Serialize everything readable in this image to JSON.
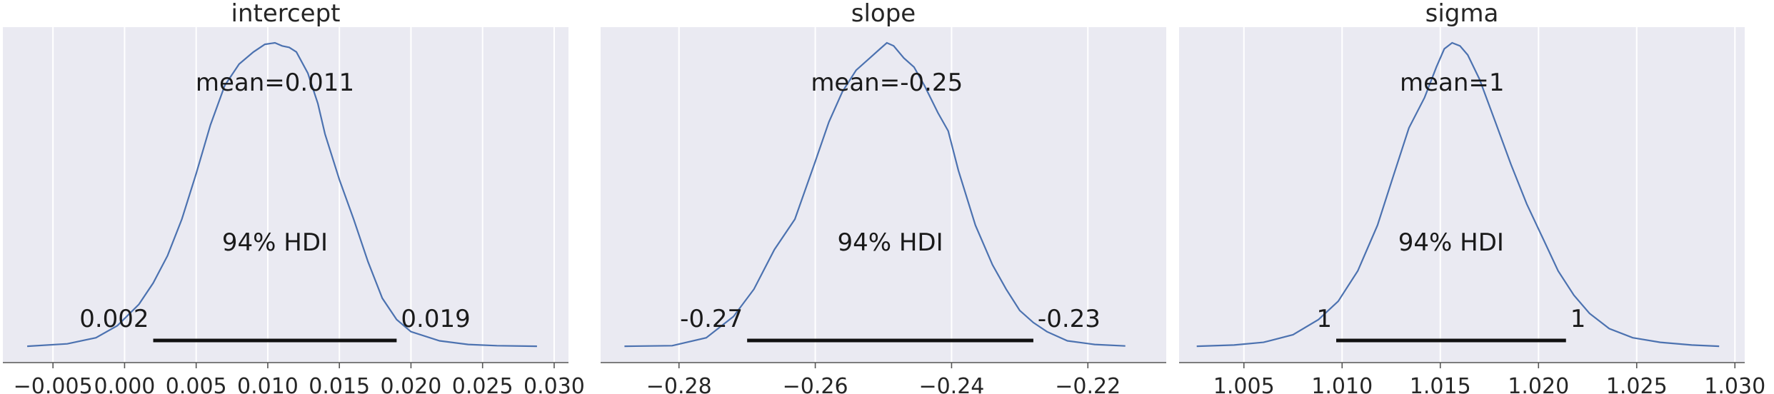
{
  "chart_data": [
    {
      "type": "line",
      "title": "intercept",
      "xlim": [
        -0.0085,
        0.031
      ],
      "x_ticks": [
        -0.005,
        0.0,
        0.005,
        0.01,
        0.015,
        0.02,
        0.025,
        0.03
      ],
      "x_tick_labels": [
        "−0.005",
        "0.000",
        "0.005",
        "0.010",
        "0.015",
        "0.020",
        "0.025",
        "0.030"
      ],
      "grid": true,
      "mean_label": "mean=0.011",
      "hdi_label": "94% HDI",
      "hdi": [
        0.002,
        0.019
      ],
      "hdi_low_label": "0.002",
      "hdi_high_label": "0.019",
      "density": {
        "x": [
          -0.0068,
          -0.004,
          -0.002,
          -0.0005,
          0.001,
          0.002,
          0.003,
          0.004,
          0.005,
          0.006,
          0.007,
          0.008,
          0.009,
          0.0098,
          0.0105,
          0.011,
          0.0115,
          0.012,
          0.0128,
          0.0135,
          0.014,
          0.015,
          0.016,
          0.017,
          0.018,
          0.019,
          0.02,
          0.022,
          0.024,
          0.026,
          0.0288
        ],
        "y": [
          0.002,
          0.01,
          0.03,
          0.07,
          0.14,
          0.21,
          0.3,
          0.42,
          0.57,
          0.73,
          0.86,
          0.93,
          0.97,
          0.995,
          1.0,
          0.99,
          0.985,
          0.97,
          0.9,
          0.8,
          0.7,
          0.55,
          0.42,
          0.28,
          0.16,
          0.09,
          0.05,
          0.02,
          0.008,
          0.004,
          0.002
        ]
      }
    },
    {
      "type": "line",
      "title": "slope",
      "xlim": [
        -0.2915,
        -0.2085
      ],
      "x_ticks": [
        -0.28,
        -0.26,
        -0.24,
        -0.22
      ],
      "x_tick_labels": [
        "−0.28",
        "−0.26",
        "−0.24",
        "−0.22"
      ],
      "grid": true,
      "mean_label": "mean=-0.25",
      "hdi_label": "94% HDI",
      "hdi": [
        -0.27,
        -0.228
      ],
      "hdi_low_label": "-0.27",
      "hdi_high_label": "-0.23",
      "density": {
        "x": [
          -0.288,
          -0.281,
          -0.276,
          -0.272,
          -0.269,
          -0.266,
          -0.263,
          -0.26,
          -0.258,
          -0.256,
          -0.254,
          -0.252,
          -0.2505,
          -0.2495,
          -0.2485,
          -0.247,
          -0.2455,
          -0.244,
          -0.242,
          -0.2405,
          -0.239,
          -0.2365,
          -0.234,
          -0.232,
          -0.23,
          -0.228,
          -0.226,
          -0.223,
          -0.219,
          -0.2145
        ],
        "y": [
          0.002,
          0.004,
          0.03,
          0.1,
          0.19,
          0.32,
          0.42,
          0.61,
          0.74,
          0.84,
          0.91,
          0.95,
          0.98,
          1.0,
          0.99,
          0.95,
          0.92,
          0.86,
          0.77,
          0.71,
          0.58,
          0.4,
          0.27,
          0.19,
          0.12,
          0.08,
          0.05,
          0.02,
          0.008,
          0.003
        ]
      }
    },
    {
      "type": "line",
      "title": "sigma",
      "xlim": [
        1.0017,
        1.0305
      ],
      "x_ticks": [
        1.005,
        1.01,
        1.015,
        1.02,
        1.025,
        1.03
      ],
      "x_tick_labels": [
        "1.005",
        "1.010",
        "1.015",
        "1.020",
        "1.025",
        "1.030"
      ],
      "grid": true,
      "mean_label": "mean=1",
      "hdi_label": "94% HDI",
      "hdi": [
        1.0097,
        1.0214
      ],
      "hdi_low_label": "1",
      "hdi_high_label": "1",
      "density": {
        "x": [
          1.0026,
          1.0045,
          1.006,
          1.0075,
          1.0088,
          1.0098,
          1.0108,
          1.0118,
          1.0126,
          1.0134,
          1.0142,
          1.0148,
          1.0152,
          1.0156,
          1.016,
          1.0164,
          1.017,
          1.0178,
          1.0186,
          1.0194,
          1.0202,
          1.021,
          1.0218,
          1.0226,
          1.0236,
          1.0248,
          1.0262,
          1.0278,
          1.0292
        ],
        "y": [
          0.002,
          0.006,
          0.015,
          0.04,
          0.09,
          0.15,
          0.25,
          0.4,
          0.56,
          0.72,
          0.82,
          0.92,
          0.98,
          1.0,
          0.99,
          0.96,
          0.88,
          0.74,
          0.6,
          0.47,
          0.36,
          0.25,
          0.17,
          0.11,
          0.06,
          0.03,
          0.015,
          0.006,
          0.002
        ]
      }
    }
  ]
}
